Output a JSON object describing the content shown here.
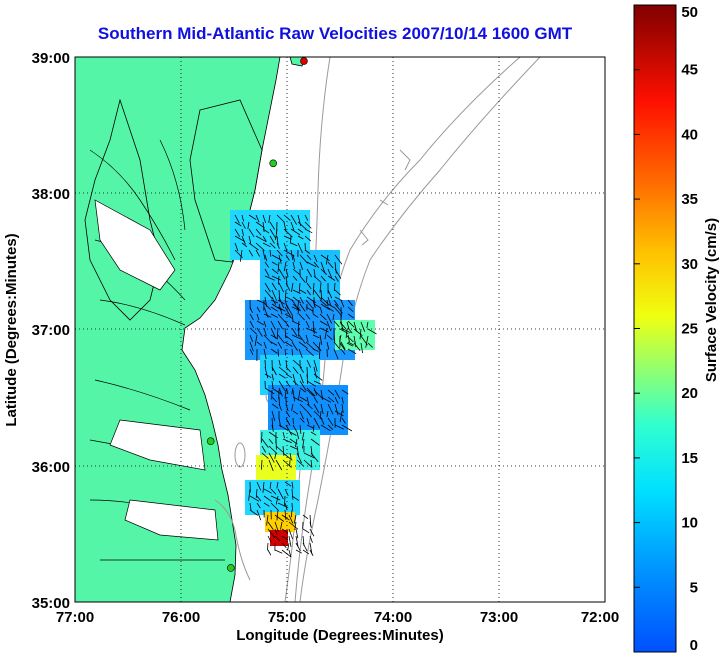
{
  "title": "Southern Mid-Atlantic Raw Velocities 2007/10/14 1600 GMT",
  "x_axis": {
    "label": "Longitude (Degrees:Minutes)",
    "ticks": [
      "77:00",
      "76:00",
      "75:00",
      "74:00",
      "73:00",
      "72:00"
    ]
  },
  "y_axis": {
    "label": "Latitude (Degrees:Minutes)",
    "ticks": [
      "39:00",
      "38:00",
      "37:00",
      "36:00",
      "35:00"
    ]
  },
  "colorbar": {
    "label": "Surface Velocity (cm/s)",
    "ticks": [
      "0",
      "5",
      "10",
      "15",
      "20",
      "25",
      "30",
      "35",
      "40",
      "45",
      "50"
    ],
    "min": 0,
    "max": 50,
    "colormap": "jet"
  },
  "colors": {
    "land": "#55f5a8",
    "title": "#1010e0",
    "station_green": "#22cc22",
    "station_red": "#e00000"
  },
  "map": {
    "lon_range": [
      -77,
      -72
    ],
    "lat_range": [
      35,
      39
    ],
    "grid": true,
    "grid_style": "dotted",
    "stations": [
      {
        "lon": -74.84,
        "lat": 38.97,
        "color": "red"
      },
      {
        "lon": -75.13,
        "lat": 38.22,
        "color": "green"
      },
      {
        "lon": -75.72,
        "lat": 36.18,
        "color": "green"
      },
      {
        "lon": -75.53,
        "lat": 35.25,
        "color": "green"
      }
    ]
  }
}
